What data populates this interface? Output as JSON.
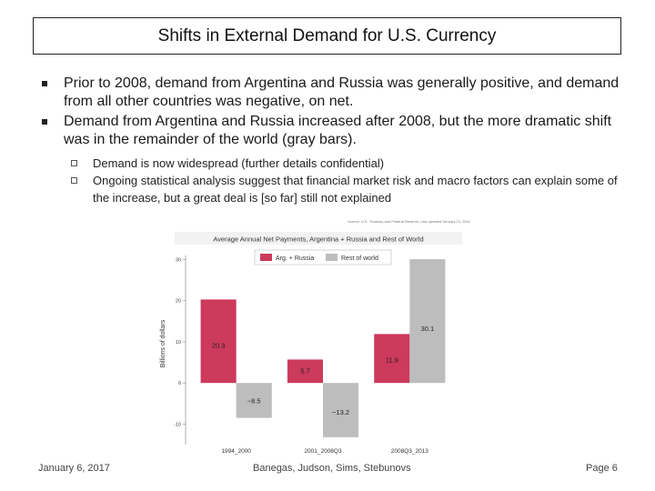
{
  "slide": {
    "title": "Shifts in External Demand for U.S. Currency",
    "bullets": [
      "Prior to 2008, demand from Argentina and Russia was generally positive, and demand from all other countries was negative, on net.",
      "Demand from Argentina and Russia increased after 2008, but the more dramatic shift was in the remainder of the world (gray bars)."
    ],
    "sub_bullets": [
      "Demand is now widespread (further details confidential)",
      "Ongoing statistical analysis suggest that financial market risk and macro factors can explain some of the increase, but a great deal is [so far] still not explained"
    ],
    "source_note": "Source: U.S. Treasury and Federal Reserve; Last updated January 21, 2011"
  },
  "footer": {
    "date": "January 6, 2017",
    "authors": "Banegas, Judson, Sims, Stebunovs",
    "page": "Page 6"
  },
  "colors": {
    "arg_russia": "#cc3a5c",
    "rest": "#bdbdbd",
    "title_bar": "#f2f2f2"
  },
  "chart_data": {
    "type": "bar",
    "title": "Average Annual Net Payments, Argentina + Russia and Rest of World",
    "xlabel": "",
    "ylabel": "Billions of dollars",
    "categories": [
      "1994_2000",
      "2001_2008Q3",
      "2008Q3_2013"
    ],
    "series": [
      {
        "name": "Arg. + Russia",
        "values": [
          20.3,
          5.7,
          11.9
        ],
        "labels": [
          "20.3",
          "5.7",
          "11.9"
        ]
      },
      {
        "name": "Rest of world",
        "values": [
          -8.5,
          -13.2,
          30.1
        ],
        "labels": [
          "−8.5",
          "−13.2",
          "30.1"
        ]
      }
    ],
    "yticks": [
      -10,
      0,
      10,
      20,
      30
    ],
    "ylim": [
      -15,
      31
    ],
    "grid": false,
    "legend": "top"
  }
}
